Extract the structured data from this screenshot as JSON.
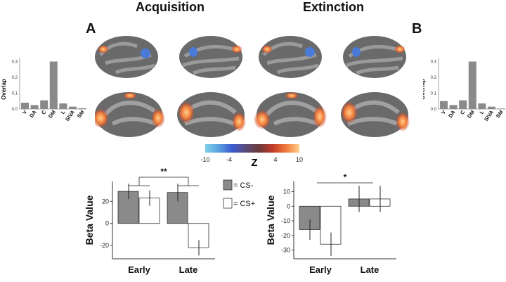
{
  "titles": {
    "left": "Acquisition",
    "right": "Extinction"
  },
  "panel_labels": {
    "a": "A",
    "b": "B"
  },
  "colors": {
    "bar_gray": "#8a8a8a",
    "brain_dark": "#5a5a5a",
    "brain_light": "#9a9a9a",
    "activation_hot": "#f08a3a",
    "activation_cold": "#4a7ad8"
  },
  "colorbar": {
    "label": "Z",
    "ticks": [
      "-10",
      "-4",
      "4",
      "10"
    ],
    "stops": [
      "#7fd0e8",
      "#5aa0e0",
      "#3a5ad0",
      "#5a4a7a",
      "#6a3a3a",
      "#c03a2a",
      "#f07a3a",
      "#ffd08a"
    ]
  },
  "chart_data": [
    {
      "type": "bar",
      "id": "overlap-A",
      "categories": [
        "V",
        "DA",
        "C",
        "DM",
        "L",
        "SIVA",
        "SM"
      ],
      "values": [
        0.04,
        0.025,
        0.055,
        0.3,
        0.035,
        0.015,
        0.005
      ],
      "ylabel": "Overlap",
      "yticks": [
        "0.0",
        "0.1",
        "0.2",
        "0.3"
      ],
      "ylim": [
        0,
        0.32
      ]
    },
    {
      "type": "bar",
      "id": "overlap-B",
      "categories": [
        "V",
        "DA",
        "C",
        "DM",
        "L",
        "SIVA",
        "SM"
      ],
      "values": [
        0.05,
        0.025,
        0.055,
        0.3,
        0.035,
        0.015,
        0.003
      ],
      "ylabel": "Overlap",
      "yticks": [
        "0.0",
        "0.1",
        "0.2",
        "0.3"
      ],
      "ylim": [
        0,
        0.32
      ]
    },
    {
      "type": "bar",
      "id": "beta-acquisition",
      "categories": [
        "Early",
        "Late"
      ],
      "series": [
        {
          "name": "CS-",
          "values": [
            29,
            28
          ],
          "errors": [
            7,
            8
          ]
        },
        {
          "name": "CS+",
          "values": [
            23,
            -22
          ],
          "errors": [
            7,
            7
          ]
        }
      ],
      "ylabel": "Beta Value",
      "yticks": [
        "-20",
        "0",
        "20"
      ],
      "ylim": [
        -32,
        38
      ],
      "significance": "**",
      "legend": "right"
    },
    {
      "type": "bar",
      "id": "beta-extinction",
      "categories": [
        "Early",
        "Late"
      ],
      "series": [
        {
          "name": "CS-",
          "values": [
            -16,
            5
          ],
          "errors": [
            7,
            9
          ]
        },
        {
          "name": "CS+",
          "values": [
            -26,
            5
          ],
          "errors": [
            8,
            9
          ]
        }
      ],
      "ylabel": "Beta Value",
      "yticks": [
        "-30",
        "-20",
        "-10",
        "0",
        "10"
      ],
      "ylim": [
        -36,
        17
      ],
      "significance": "*"
    }
  ]
}
